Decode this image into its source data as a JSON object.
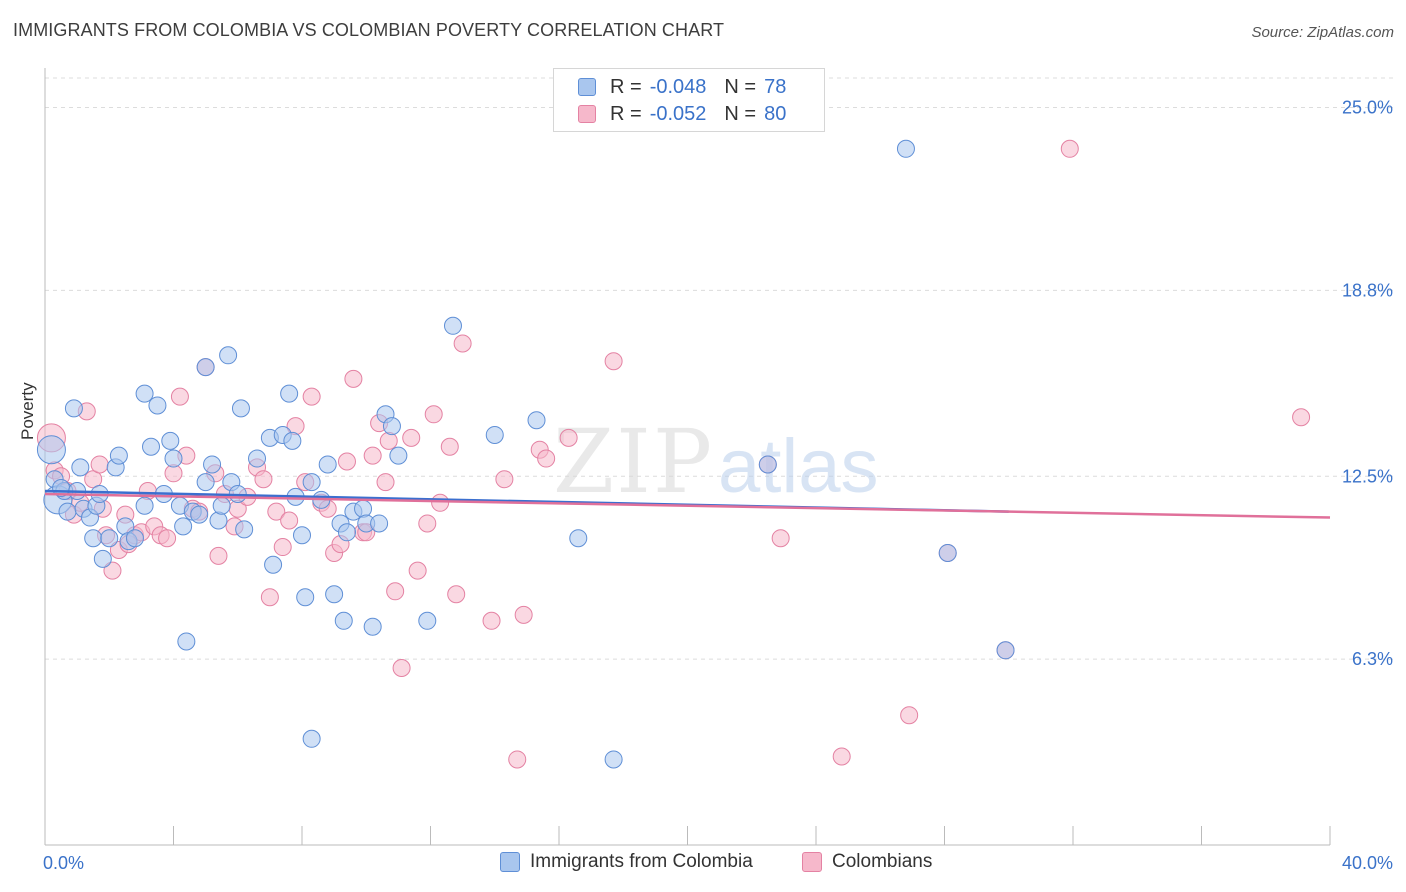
{
  "title": "IMMIGRANTS FROM COLOMBIA VS COLOMBIAN POVERTY CORRELATION CHART",
  "source": "Source: ZipAtlas.com",
  "watermark": {
    "zip": "ZIP",
    "atlas": "atlas"
  },
  "legend": {
    "rows": [
      {
        "r_label": "R =",
        "r_value": "-0.048",
        "n_label": "N =",
        "n_value": "78"
      },
      {
        "r_label": "R =",
        "r_value": "-0.052",
        "n_label": "N =",
        "n_value": "80"
      }
    ]
  },
  "bottom_legend": {
    "series1": "Immigrants from Colombia",
    "series2": "Colombians"
  },
  "colors": {
    "blue_fill": "#a9c6ee",
    "blue_stroke": "#5f8fd6",
    "blue_line": "#3b6fcf",
    "pink_fill": "#f6b8cb",
    "pink_stroke": "#e482a3",
    "pink_line": "#e0709a",
    "axis_text": "#3a72c9",
    "grid": "#dcdcdc"
  },
  "chart_data": {
    "type": "scatter",
    "title": "IMMIGRANTS FROM COLOMBIA VS COLOMBIAN POVERTY CORRELATION CHART",
    "xlabel": "",
    "ylabel": "Poverty",
    "xlim": [
      0,
      40
    ],
    "ylim": [
      0,
      26
    ],
    "x_tick_labels": [
      "0.0%",
      "40.0%"
    ],
    "y_ticks": [
      {
        "value": 6.3,
        "label": "6.3%"
      },
      {
        "value": 12.5,
        "label": "12.5%"
      },
      {
        "value": 18.8,
        "label": "18.8%"
      },
      {
        "value": 25.0,
        "label": "25.0%"
      }
    ],
    "series": [
      {
        "name": "Immigrants from Colombia",
        "r": -0.048,
        "n": 78,
        "trend": {
          "x0": 0,
          "y0": 12.0,
          "x1": 30,
          "y1": 11.3,
          "dash_to": 40,
          "dash_y": 11.1
        },
        "points": [
          [
            0.2,
            13.4
          ],
          [
            0.3,
            12.4
          ],
          [
            0.4,
            11.7
          ],
          [
            0.6,
            12.0
          ],
          [
            0.7,
            11.3
          ],
          [
            0.9,
            14.8
          ],
          [
            1.1,
            12.8
          ],
          [
            1.2,
            11.4
          ],
          [
            1.4,
            11.1
          ],
          [
            1.5,
            10.4
          ],
          [
            1.6,
            11.5
          ],
          [
            1.7,
            11.9
          ],
          [
            1.8,
            9.7
          ],
          [
            2.0,
            10.4
          ],
          [
            2.2,
            12.8
          ],
          [
            2.3,
            13.2
          ],
          [
            2.5,
            10.8
          ],
          [
            2.6,
            10.3
          ],
          [
            2.8,
            10.4
          ],
          [
            3.1,
            11.5
          ],
          [
            3.1,
            15.3
          ],
          [
            3.3,
            13.5
          ],
          [
            3.5,
            14.9
          ],
          [
            3.7,
            11.9
          ],
          [
            3.9,
            13.7
          ],
          [
            4.0,
            13.1
          ],
          [
            4.2,
            11.5
          ],
          [
            4.3,
            10.8
          ],
          [
            4.4,
            6.9
          ],
          [
            4.6,
            11.3
          ],
          [
            4.8,
            11.2
          ],
          [
            5.0,
            12.3
          ],
          [
            5.2,
            12.9
          ],
          [
            5.4,
            11.0
          ],
          [
            5.5,
            11.5
          ],
          [
            5.7,
            16.6
          ],
          [
            5.8,
            12.3
          ],
          [
            6.0,
            11.9
          ],
          [
            6.1,
            14.8
          ],
          [
            6.2,
            10.7
          ],
          [
            6.6,
            13.1
          ],
          [
            7.0,
            13.8
          ],
          [
            7.1,
            9.5
          ],
          [
            7.4,
            13.9
          ],
          [
            7.6,
            15.3
          ],
          [
            7.7,
            13.7
          ],
          [
            7.8,
            11.8
          ],
          [
            8.0,
            10.5
          ],
          [
            8.1,
            8.4
          ],
          [
            8.3,
            12.3
          ],
          [
            8.6,
            11.7
          ],
          [
            8.8,
            12.9
          ],
          [
            9.0,
            8.5
          ],
          [
            9.2,
            10.9
          ],
          [
            9.3,
            7.6
          ],
          [
            9.4,
            10.6
          ],
          [
            9.6,
            11.3
          ],
          [
            9.9,
            11.4
          ],
          [
            10.0,
            10.9
          ],
          [
            10.2,
            7.4
          ],
          [
            10.4,
            10.9
          ],
          [
            10.6,
            14.6
          ],
          [
            10.8,
            14.2
          ],
          [
            11.0,
            13.2
          ],
          [
            11.9,
            7.6
          ],
          [
            12.7,
            17.6
          ],
          [
            14.0,
            13.9
          ],
          [
            15.3,
            14.4
          ],
          [
            16.6,
            10.4
          ],
          [
            17.7,
            2.9
          ],
          [
            8.3,
            3.6
          ],
          [
            5.0,
            16.2
          ],
          [
            22.5,
            12.9
          ],
          [
            26.8,
            23.6
          ],
          [
            28.1,
            9.9
          ],
          [
            29.9,
            6.6
          ],
          [
            0.5,
            12.1
          ],
          [
            1.0,
            12.0
          ]
        ]
      },
      {
        "name": "Colombians",
        "r": -0.052,
        "n": 80,
        "trend": {
          "x0": 0,
          "y0": 11.9,
          "x1": 40,
          "y1": 11.1
        },
        "points": [
          [
            0.2,
            13.8
          ],
          [
            0.3,
            12.7
          ],
          [
            0.5,
            12.5
          ],
          [
            0.7,
            12.0
          ],
          [
            0.9,
            11.2
          ],
          [
            1.1,
            11.6
          ],
          [
            1.3,
            14.7
          ],
          [
            1.5,
            12.4
          ],
          [
            1.7,
            12.9
          ],
          [
            1.8,
            11.4
          ],
          [
            1.9,
            10.5
          ],
          [
            2.1,
            9.3
          ],
          [
            2.3,
            10.0
          ],
          [
            2.5,
            11.2
          ],
          [
            2.6,
            10.2
          ],
          [
            2.8,
            10.5
          ],
          [
            3.0,
            10.6
          ],
          [
            3.2,
            12.0
          ],
          [
            3.4,
            10.8
          ],
          [
            3.6,
            10.5
          ],
          [
            3.8,
            10.4
          ],
          [
            4.0,
            12.6
          ],
          [
            4.2,
            15.2
          ],
          [
            4.4,
            13.2
          ],
          [
            4.6,
            11.4
          ],
          [
            4.8,
            11.3
          ],
          [
            5.0,
            16.2
          ],
          [
            5.3,
            12.6
          ],
          [
            5.4,
            9.8
          ],
          [
            5.6,
            11.9
          ],
          [
            5.9,
            10.8
          ],
          [
            6.0,
            11.4
          ],
          [
            6.3,
            11.8
          ],
          [
            6.6,
            12.8
          ],
          [
            6.8,
            12.4
          ],
          [
            7.0,
            8.4
          ],
          [
            7.2,
            11.3
          ],
          [
            7.4,
            10.1
          ],
          [
            7.6,
            11.0
          ],
          [
            7.8,
            14.2
          ],
          [
            8.1,
            12.3
          ],
          [
            8.3,
            15.2
          ],
          [
            8.6,
            11.6
          ],
          [
            8.8,
            11.4
          ],
          [
            9.0,
            9.9
          ],
          [
            9.2,
            10.2
          ],
          [
            9.4,
            13.0
          ],
          [
            9.6,
            15.8
          ],
          [
            9.9,
            10.6
          ],
          [
            10.0,
            10.6
          ],
          [
            10.2,
            13.2
          ],
          [
            10.4,
            14.3
          ],
          [
            10.6,
            12.3
          ],
          [
            10.7,
            13.7
          ],
          [
            10.9,
            8.6
          ],
          [
            11.1,
            6.0
          ],
          [
            11.4,
            13.8
          ],
          [
            11.6,
            9.3
          ],
          [
            11.9,
            10.9
          ],
          [
            12.1,
            14.6
          ],
          [
            12.3,
            11.6
          ],
          [
            12.6,
            13.5
          ],
          [
            12.8,
            8.5
          ],
          [
            13.0,
            17.0
          ],
          [
            13.9,
            7.6
          ],
          [
            14.3,
            12.4
          ],
          [
            14.7,
            2.9
          ],
          [
            14.9,
            7.8
          ],
          [
            15.4,
            13.4
          ],
          [
            15.6,
            13.1
          ],
          [
            16.3,
            13.8
          ],
          [
            17.7,
            16.4
          ],
          [
            22.5,
            12.9
          ],
          [
            22.9,
            10.4
          ],
          [
            24.8,
            3.0
          ],
          [
            26.9,
            4.4
          ],
          [
            28.1,
            9.9
          ],
          [
            29.9,
            6.6
          ],
          [
            31.9,
            23.6
          ],
          [
            39.1,
            14.5
          ]
        ]
      }
    ]
  }
}
